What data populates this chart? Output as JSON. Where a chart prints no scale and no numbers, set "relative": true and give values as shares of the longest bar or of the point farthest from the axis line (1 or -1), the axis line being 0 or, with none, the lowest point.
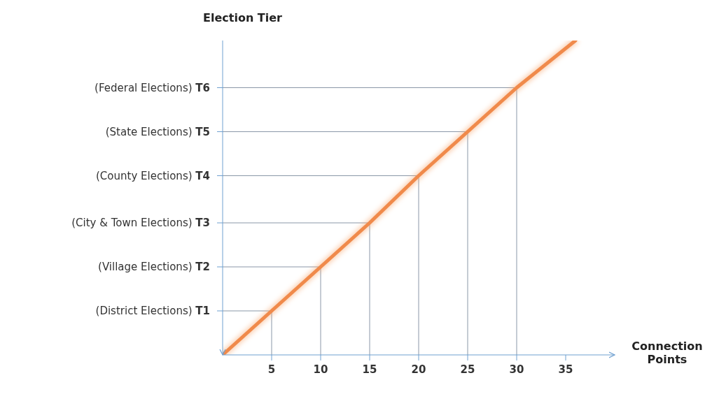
{
  "chart_data": {
    "type": "line",
    "xlabel": "Connection Points",
    "ylabel": "Election Tier",
    "relative": true,
    "series": [
      {
        "color": "#f08a4b",
        "x": [
          0,
          5,
          10,
          15,
          20,
          25,
          30,
          36
        ],
        "values": [
          0,
          0.14,
          0.28,
          0.42,
          0.57,
          0.71,
          0.85,
          1
        ]
      }
    ],
    "xlim": [
      0,
      40
    ],
    "xticks": [
      5,
      10,
      15,
      20,
      25,
      30,
      35
    ],
    "annotations": [
      "(District Elections) T1",
      "(Village Elections) T2",
      "(City & Town Elections) T3",
      "(County Elections) T4",
      "(State Elections) T5",
      "(Federal Elections) T6"
    ],
    "marker": "none",
    "line_style": "solid"
  }
}
